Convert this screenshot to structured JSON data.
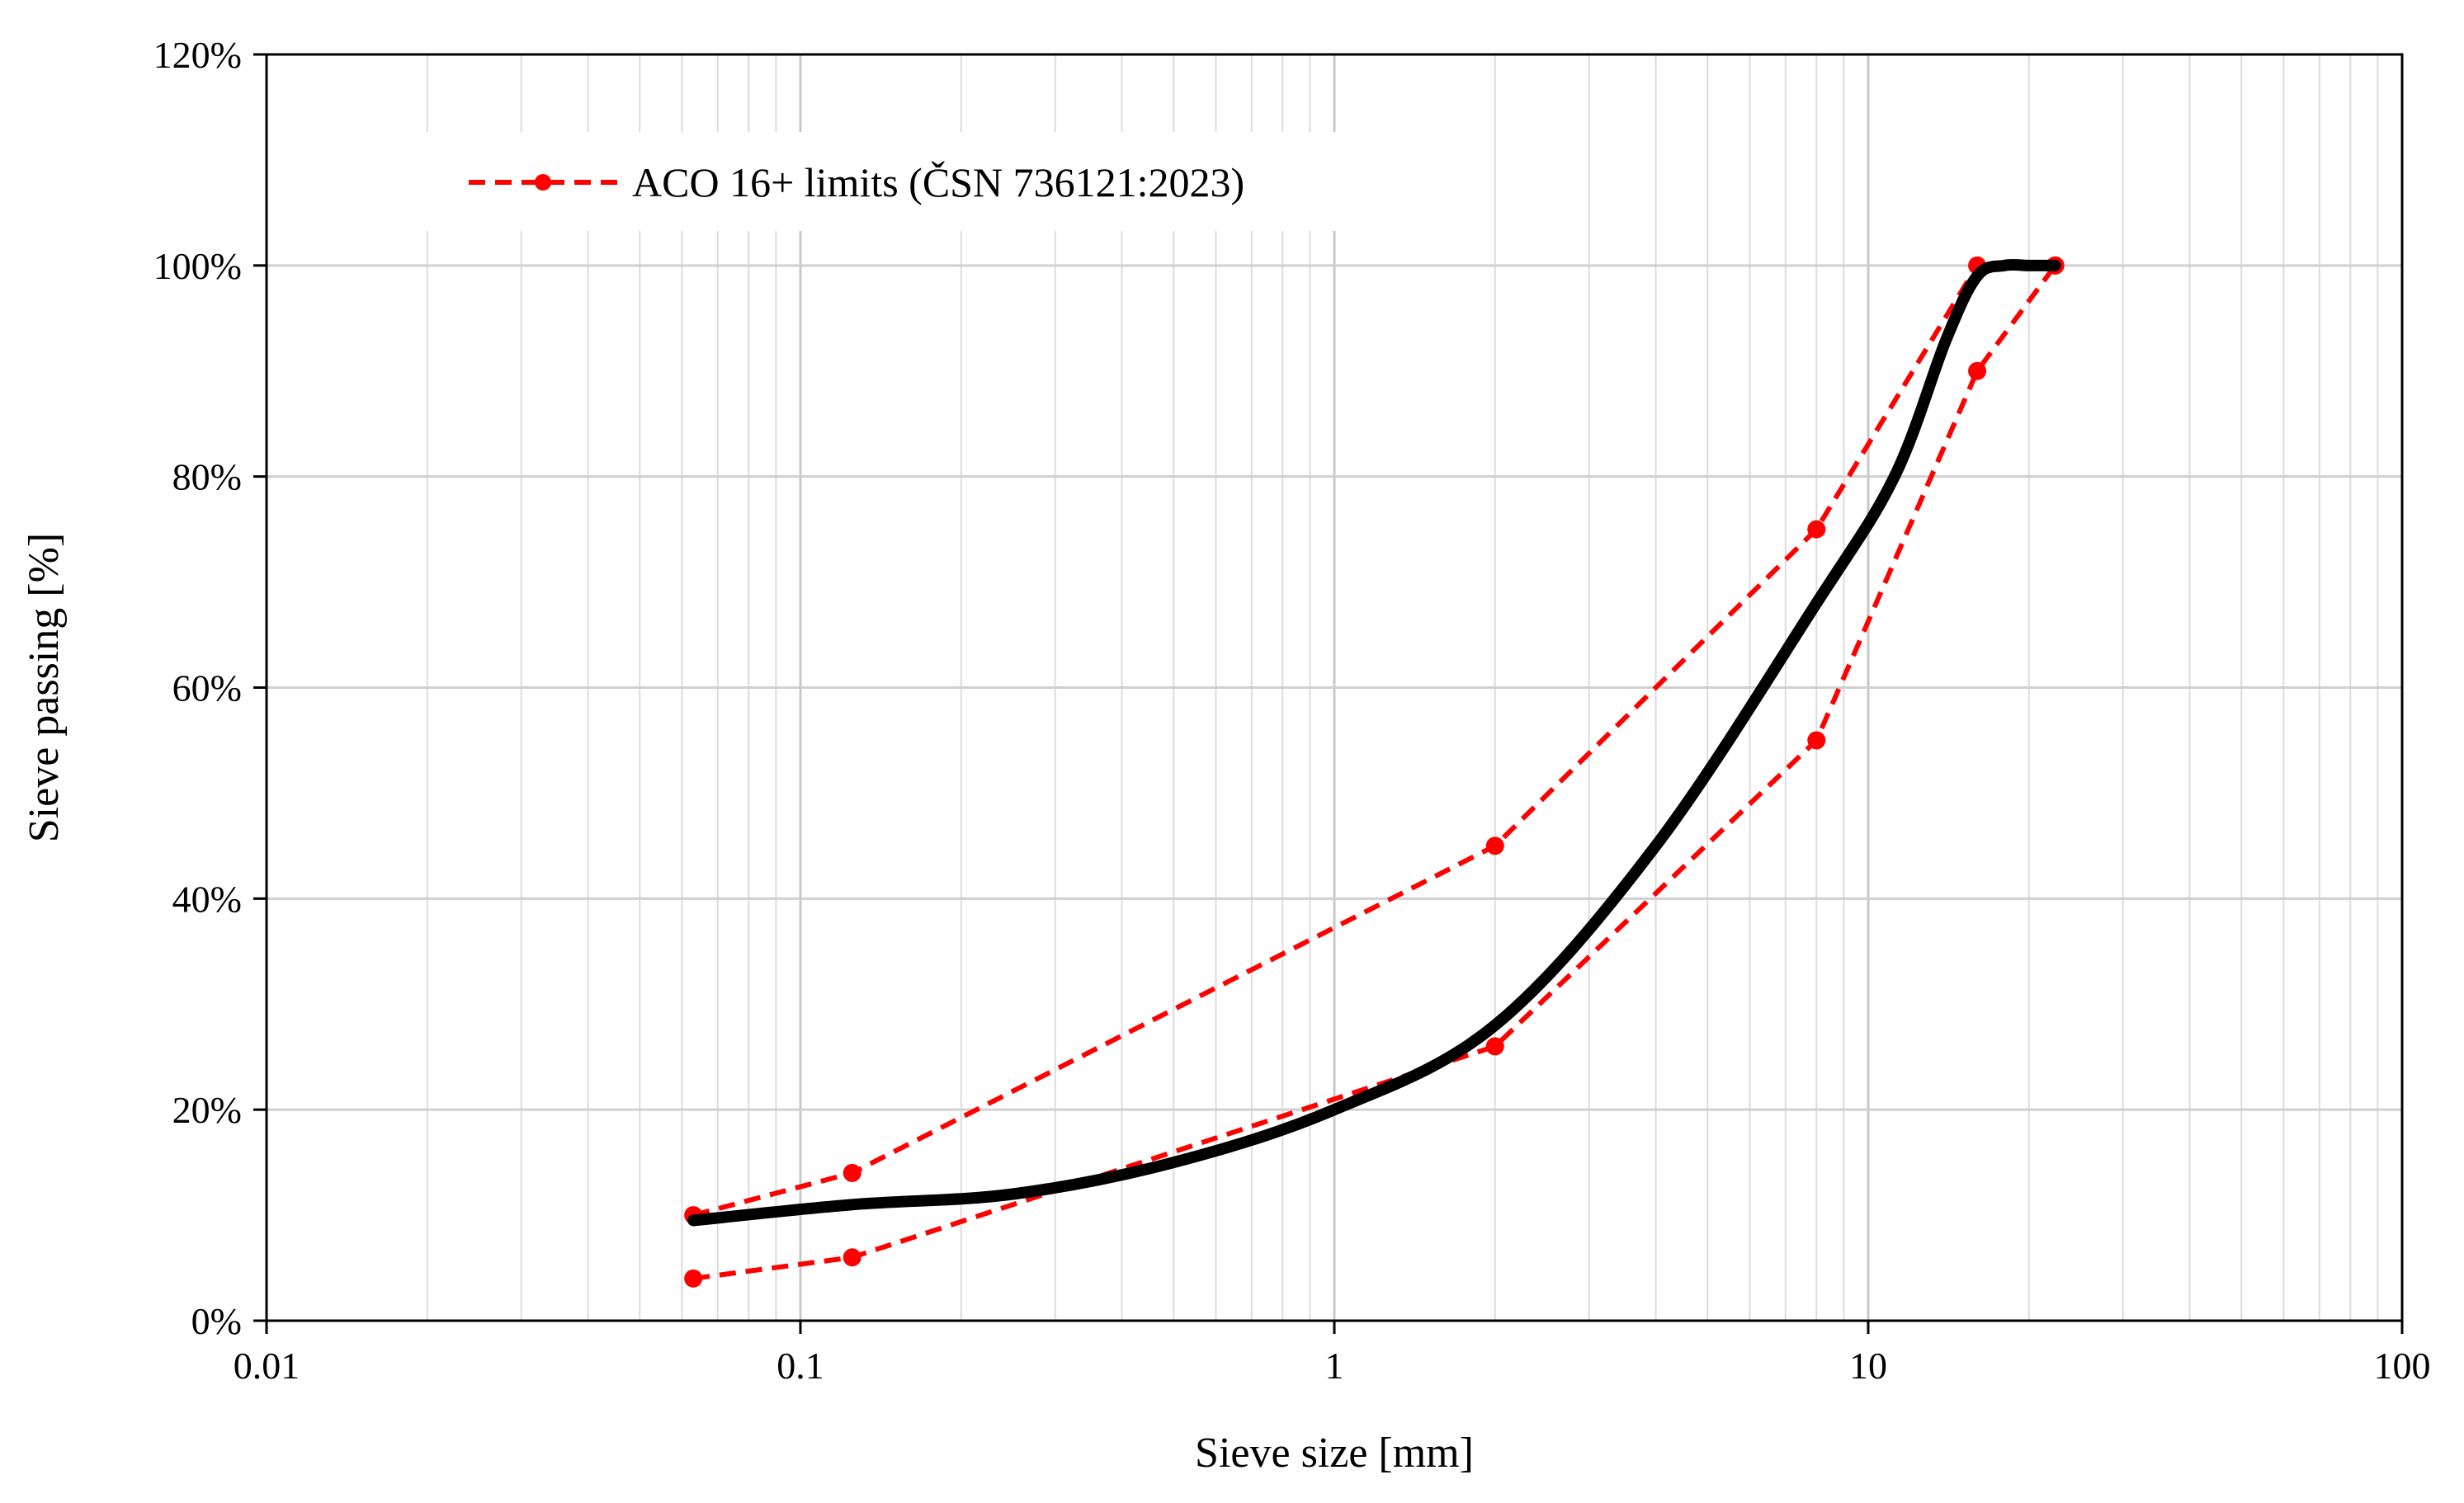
{
  "chart_data": {
    "type": "line",
    "title": "",
    "xlabel": "Sieve size [mm]",
    "ylabel": "Sieve passing [%]",
    "x_scale": "log",
    "xlim": [
      0.01,
      100
    ],
    "ylim": [
      0,
      1.2
    ],
    "x_ticks": [
      {
        "value": 0.01,
        "label": "0.01"
      },
      {
        "value": 0.1,
        "label": "0.1"
      },
      {
        "value": 1,
        "label": "1"
      },
      {
        "value": 10,
        "label": "10"
      },
      {
        "value": 100,
        "label": "100"
      }
    ],
    "y_ticks": [
      {
        "value": 0,
        "label": "0%"
      },
      {
        "value": 0.2,
        "label": "20%"
      },
      {
        "value": 0.4,
        "label": "40%"
      },
      {
        "value": 0.6,
        "label": "60%"
      },
      {
        "value": 0.8,
        "label": "80%"
      },
      {
        "value": 1.0,
        "label": "100%"
      },
      {
        "value": 1.2,
        "label": "120%"
      }
    ],
    "grid": true,
    "legend": {
      "position": "top-left",
      "entries": [
        "ACO 16+ limits (ČSN 736121:2023)"
      ]
    },
    "series": [
      {
        "name": "ACO 16+ limits (ČSN 736121:2023)",
        "style": "dashed-markers",
        "color": "#ff0000",
        "x": [
          0.063,
          0.125,
          2,
          8,
          16,
          22.4
        ],
        "y": [
          0.1,
          0.14,
          0.45,
          0.75,
          1.0,
          1.0
        ]
      },
      {
        "style": "dashed-markers",
        "color": "#ff0000",
        "x": [
          0.063,
          0.125,
          2,
          8,
          16,
          22.4
        ],
        "y": [
          0.04,
          0.06,
          0.26,
          0.55,
          0.9,
          1.0
        ]
      },
      {
        "style": "solid",
        "color": "#000000",
        "x": [
          0.063,
          0.125,
          0.25,
          0.5,
          1,
          2,
          4,
          8,
          11.2,
          14,
          16,
          18,
          20,
          22.4
        ],
        "y": [
          0.095,
          0.11,
          0.12,
          0.15,
          0.2,
          0.28,
          0.45,
          0.68,
          0.8,
          0.93,
          0.99,
          1.0,
          1.0,
          1.0
        ]
      }
    ]
  }
}
